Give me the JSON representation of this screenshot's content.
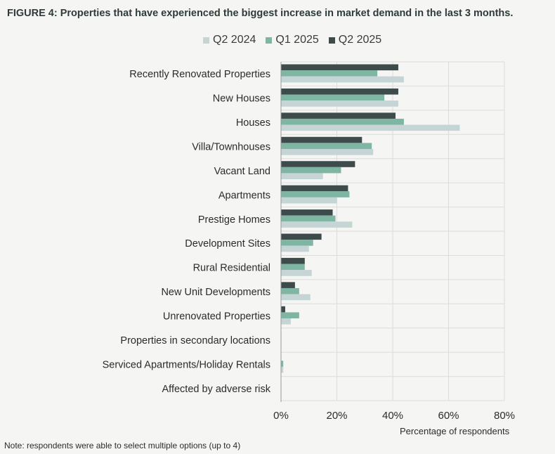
{
  "title": "FIGURE 4: Properties that have experienced the biggest increase in market demand in the last 3 months.",
  "note": "Note: respondents were able to select multiple options (up to 4)",
  "colors": {
    "q2_2024": "#c5d4d4",
    "q1_2025": "#7fb5a3",
    "q2_2025": "#3d4b4b",
    "grid": "#dcdcdc",
    "axis": "#9a9a9a"
  },
  "chart_data": {
    "type": "bar",
    "orientation": "horizontal",
    "title": "FIGURE 4: Properties that have experienced the biggest increase in market demand in the last 3 months.",
    "xlabel": "Percentage of respondents",
    "ylabel": "",
    "xlim": [
      0,
      80
    ],
    "xticks": [
      "0%",
      "20%",
      "40%",
      "60%",
      "80%"
    ],
    "xtick_values": [
      0,
      20,
      40,
      60,
      80
    ],
    "grid": true,
    "legend_position": "top",
    "categories": [
      "Recently Renovated Properties",
      "New Houses",
      "Houses",
      "Villa/Townhouses",
      "Vacant Land",
      "Apartments",
      "Prestige Homes",
      "Development Sites",
      "Rural Residential",
      "New Unit Developments",
      "Unrenovated Properties",
      "Properties in secondary locations",
      "Serviced Apartments/Holiday Rentals",
      "Affected by adverse risk"
    ],
    "series": [
      {
        "name": "Q2 2025",
        "key": "q2_2025",
        "values": [
          42,
          42,
          41,
          29,
          26.5,
          24,
          18.5,
          14.5,
          8.5,
          5,
          1.5,
          0,
          0,
          0
        ]
      },
      {
        "name": "Q1 2025",
        "key": "q1_2025",
        "values": [
          34.5,
          37,
          44,
          32.5,
          21.5,
          24.5,
          19.5,
          11.5,
          8.5,
          6.5,
          6.5,
          0,
          0.8,
          0
        ]
      },
      {
        "name": "Q2 2024",
        "key": "q2_2024",
        "values": [
          44,
          42,
          64,
          33,
          15,
          20,
          25.5,
          10,
          11,
          10.5,
          3.5,
          0,
          0.8,
          0
        ]
      }
    ],
    "legend": [
      "Q2 2024",
      "Q1 2025",
      "Q2 2025"
    ]
  }
}
